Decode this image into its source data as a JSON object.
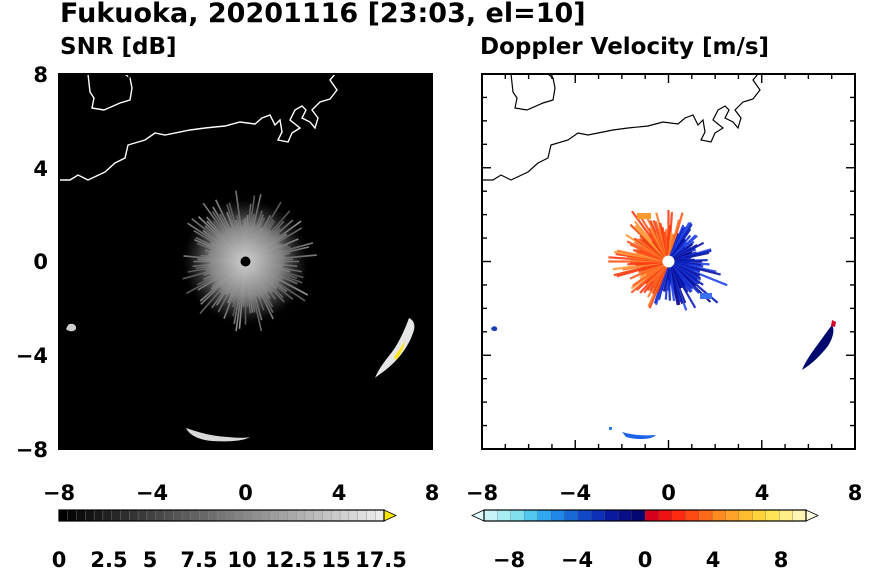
{
  "title": "Fukuoka, 20201116 [23:03, el=10]",
  "chart_data": [
    {
      "type": "heatmap",
      "title": "SNR [dB]",
      "xlim": [
        -8,
        8
      ],
      "ylim": [
        -8,
        8
      ],
      "x_ticks": [
        "−8",
        "−4",
        "0",
        "4",
        "8"
      ],
      "y_ticks": [
        "8",
        "4",
        "0",
        "−4",
        "−8"
      ],
      "background": "black",
      "colorbar": {
        "min": 0,
        "max": 18.5,
        "extend": "max",
        "tick_labels": [
          "0",
          "2.5",
          "5",
          "7.5",
          "10",
          "12.5",
          "15",
          "17.5"
        ]
      },
      "features": [
        {
          "label": "ground clutter near radar",
          "center": [
            0,
            0
          ],
          "radius_km": 2.7,
          "snr_db": [
            2,
            8
          ]
        },
        {
          "label": "echo south",
          "x": [
            -2.5,
            0.3
          ],
          "y": [
            -7.2,
            -7.6
          ],
          "snr_db": [
            8,
            12
          ]
        },
        {
          "label": "echo east",
          "x": [
            5.5,
            7.3
          ],
          "y": [
            -4.8,
            -2.5
          ],
          "snr_db": [
            10,
            18
          ]
        },
        {
          "label": "echo west",
          "x": [
            -7.5,
            -7.1
          ],
          "y": [
            -2.8,
            -3.0
          ],
          "snr_db": [
            8,
            10
          ]
        }
      ]
    },
    {
      "type": "heatmap",
      "title": "Doppler Velocity [m/s]",
      "xlim": [
        -8,
        8
      ],
      "ylim": [
        -8,
        8
      ],
      "x_ticks": [
        "−8",
        "−4",
        "0",
        "4",
        "8"
      ],
      "y_ticks": [],
      "background": "white",
      "colorbar": {
        "min": -10,
        "max": 10,
        "extend": "both",
        "tick_labels": [
          "−8",
          "−4",
          "0",
          "4",
          "8"
        ]
      },
      "features": [
        {
          "label": "receding flow west of radar",
          "center": [
            -0.5,
            0.2
          ],
          "velocity_ms": [
            2,
            7
          ]
        },
        {
          "label": "approaching flow east of radar",
          "center": [
            0.6,
            -0.2
          ],
          "velocity_ms": [
            -8,
            -3
          ]
        },
        {
          "label": "echo south",
          "x": [
            -1.8,
            -0.5
          ],
          "y": [
            -7.3,
            -7.6
          ],
          "velocity_ms": [
            -5,
            -4
          ]
        },
        {
          "label": "echo east",
          "x": [
            5.8,
            7.2
          ],
          "y": [
            -4.6,
            -2.5
          ],
          "velocity_ms": [
            -9,
            -7
          ]
        },
        {
          "label": "echo west",
          "x": [
            -7.5,
            -7.2
          ],
          "y": [
            -2.8,
            -3.0
          ],
          "velocity_ms": [
            -5,
            -4
          ]
        }
      ]
    }
  ]
}
